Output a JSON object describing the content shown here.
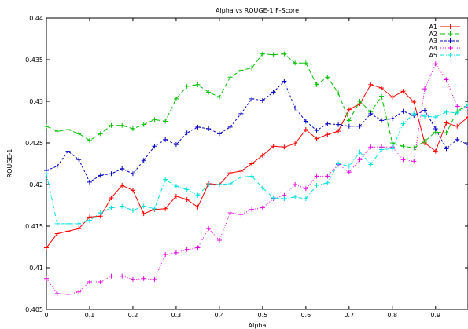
{
  "chart_data": {
    "type": "line",
    "title": "Alpha vs ROUGE-1 F-Score",
    "xlabel": "Alpha",
    "ylabel": "ROUGE-1",
    "xlim": [
      0,
      0.975
    ],
    "ylim": [
      0.405,
      0.44
    ],
    "x_ticks": [
      "0",
      "0.1",
      "0.2",
      "0.3",
      "0.4",
      "0.5",
      "0.6",
      "0.7",
      "0.8",
      "0.9"
    ],
    "y_ticks": [
      "0.405",
      "0.41",
      "0.415",
      "0.42",
      "0.425",
      "0.43",
      "0.435",
      "0.44"
    ],
    "x_tick_values": [
      0,
      0.1,
      0.2,
      0.3,
      0.4,
      0.5,
      0.6,
      0.7,
      0.8,
      0.9
    ],
    "y_tick_values": [
      0.405,
      0.41,
      0.415,
      0.42,
      0.425,
      0.43,
      0.435,
      0.44
    ],
    "grid": false,
    "legend_position": "top-right",
    "x": [
      0,
      0.025,
      0.05,
      0.075,
      0.1,
      0.125,
      0.15,
      0.175,
      0.2,
      0.225,
      0.25,
      0.275,
      0.3,
      0.325,
      0.35,
      0.375,
      0.4,
      0.425,
      0.45,
      0.475,
      0.5,
      0.525,
      0.55,
      0.575,
      0.6,
      0.625,
      0.65,
      0.675,
      0.7,
      0.725,
      0.75,
      0.775,
      0.8,
      0.825,
      0.85,
      0.875,
      0.9,
      0.925,
      0.95,
      0.975
    ],
    "series": [
      {
        "name": "A1",
        "color": "#ff0000",
        "dash": "solid",
        "values": [
          0.4124,
          0.4141,
          0.4144,
          0.4147,
          0.4161,
          0.4162,
          0.4184,
          0.4199,
          0.4193,
          0.4165,
          0.417,
          0.4171,
          0.4186,
          0.4182,
          0.4173,
          0.4201,
          0.42,
          0.4214,
          0.4216,
          0.4225,
          0.4235,
          0.4246,
          0.4245,
          0.4249,
          0.4266,
          0.4255,
          0.426,
          0.4264,
          0.429,
          0.4297,
          0.432,
          0.4316,
          0.4305,
          0.4312,
          0.4299,
          0.425,
          0.424,
          0.4274,
          0.427,
          0.4281
        ]
      },
      {
        "name": "A2",
        "color": "#00c000",
        "dash": "6,3",
        "values": [
          0.427,
          0.4264,
          0.4266,
          0.4261,
          0.4253,
          0.4261,
          0.4271,
          0.4271,
          0.4267,
          0.4272,
          0.4278,
          0.4276,
          0.4303,
          0.4318,
          0.432,
          0.4311,
          0.4305,
          0.4329,
          0.4337,
          0.434,
          0.4357,
          0.4356,
          0.4357,
          0.4346,
          0.4346,
          0.432,
          0.4329,
          0.431,
          0.4277,
          0.43,
          0.4287,
          0.4306,
          0.425,
          0.4246,
          0.4244,
          0.4252,
          0.4263,
          0.4262,
          0.4288,
          0.4296
        ]
      },
      {
        "name": "A3",
        "color": "#0000c0",
        "dash": "3,2",
        "values": [
          0.4217,
          0.4222,
          0.424,
          0.423,
          0.4203,
          0.4211,
          0.4213,
          0.4219,
          0.4213,
          0.4229,
          0.4246,
          0.4254,
          0.4248,
          0.4262,
          0.4269,
          0.4267,
          0.4261,
          0.4269,
          0.4285,
          0.4303,
          0.4301,
          0.4311,
          0.4324,
          0.4292,
          0.4276,
          0.4265,
          0.4273,
          0.4272,
          0.427,
          0.427,
          0.4285,
          0.4277,
          0.4279,
          0.4288,
          0.4283,
          0.4289,
          0.4267,
          0.4243,
          0.4254,
          0.4248
        ]
      },
      {
        "name": "A4",
        "color": "#e000e0",
        "dash": "1,2",
        "values": [
          0.4087,
          0.4069,
          0.4068,
          0.4071,
          0.4083,
          0.4083,
          0.409,
          0.409,
          0.4086,
          0.4087,
          0.4086,
          0.4116,
          0.4118,
          0.4122,
          0.4124,
          0.4147,
          0.4133,
          0.4166,
          0.4164,
          0.417,
          0.4172,
          0.4183,
          0.4187,
          0.42,
          0.4195,
          0.421,
          0.421,
          0.4224,
          0.4215,
          0.423,
          0.4245,
          0.4245,
          0.4245,
          0.423,
          0.4228,
          0.4315,
          0.4345,
          0.4326,
          0.4294,
          0.4293
        ]
      },
      {
        "name": "A5",
        "color": "#00e0e0",
        "dash": "5,2,1,2",
        "values": [
          0.4213,
          0.4153,
          0.4153,
          0.4153,
          0.4157,
          0.4166,
          0.4172,
          0.4174,
          0.4169,
          0.4174,
          0.4171,
          0.4206,
          0.4198,
          0.4194,
          0.4187,
          0.42,
          0.42,
          0.4201,
          0.4209,
          0.421,
          0.4196,
          0.4184,
          0.4183,
          0.4185,
          0.4183,
          0.4199,
          0.4202,
          0.4225,
          0.4222,
          0.4239,
          0.4224,
          0.4242,
          0.4243,
          0.4273,
          0.4285,
          0.4282,
          0.4281,
          0.4287,
          0.4286,
          0.4296
        ]
      }
    ]
  }
}
